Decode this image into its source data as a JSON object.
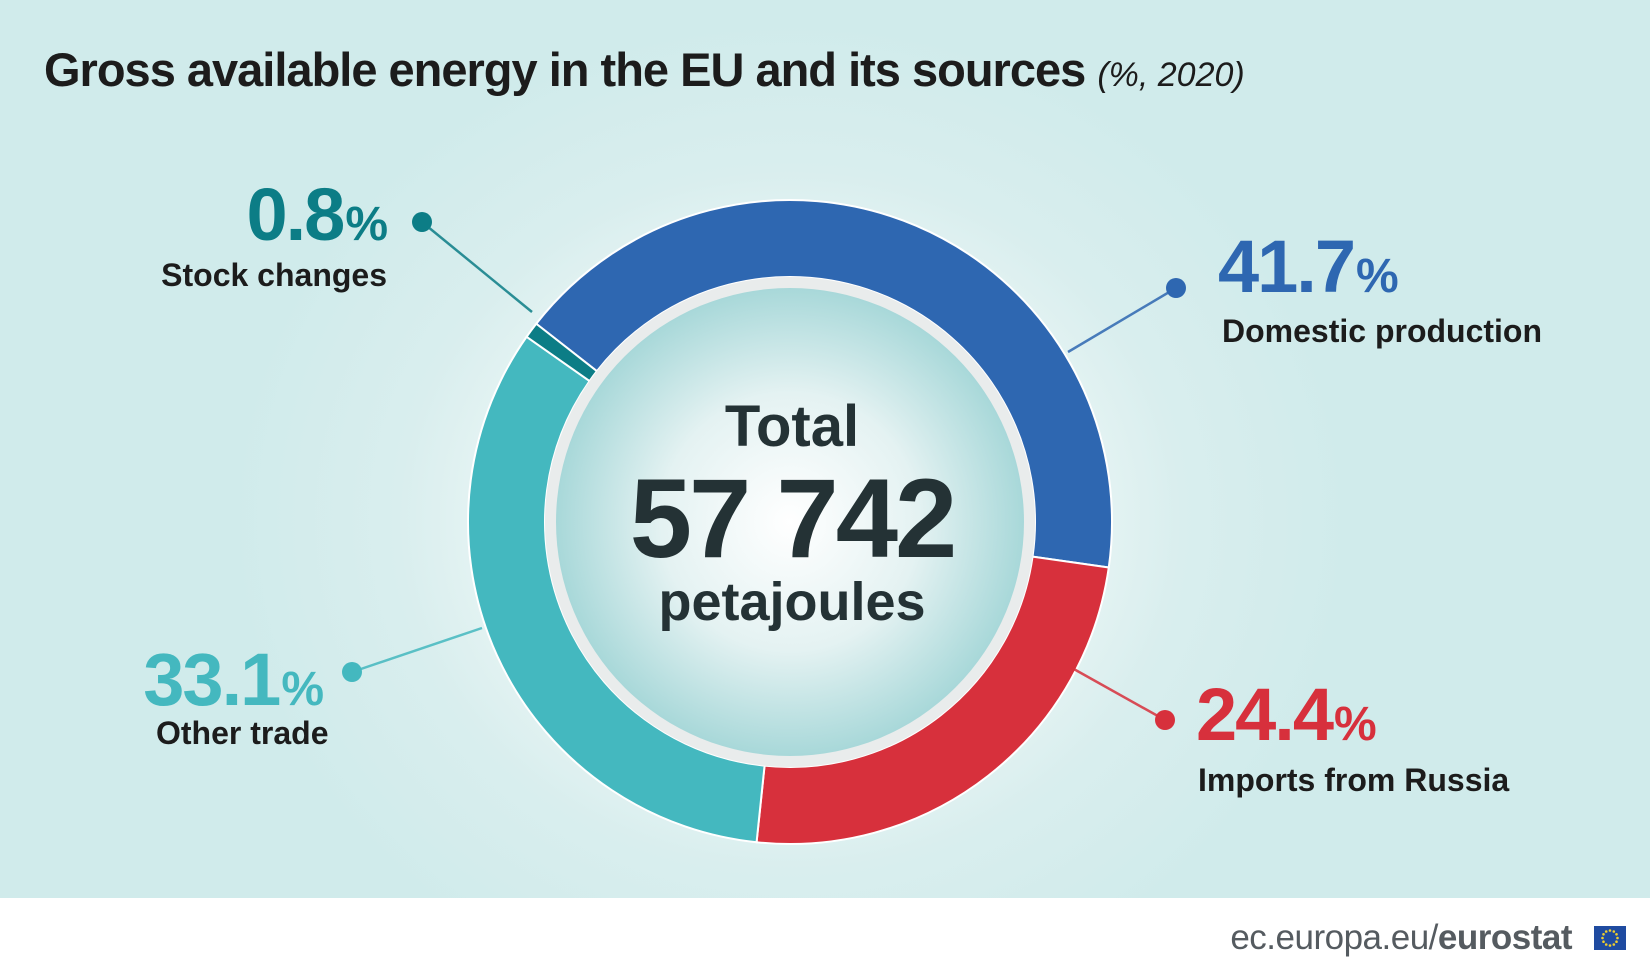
{
  "header": {
    "title": "Gross available energy in the EU and its sources",
    "subtitle": "(%, 2020)"
  },
  "center": {
    "line1": "Total",
    "value": "57 742",
    "unit": "petajoules"
  },
  "chart_data": {
    "type": "pie",
    "title": "Gross available energy in the EU and its sources",
    "subtitle": "(%, 2020)",
    "unit": "%",
    "slices": [
      {
        "name": "Domestic production",
        "value": 41.7,
        "label": "41.7%",
        "color": "#2e67b1"
      },
      {
        "name": "Imports from Russia",
        "value": 24.4,
        "label": "24.4%",
        "color": "#d7303c"
      },
      {
        "name": "Other trade",
        "value": 33.1,
        "label": "33.1%",
        "color": "#44b8bf"
      },
      {
        "name": "Stock changes",
        "value": 0.8,
        "label": "0.8%",
        "color": "#0c7d86"
      }
    ]
  },
  "colors": {
    "domestic": "#2e67b1",
    "russia": "#d7303c",
    "other_trade": "#44b8bf",
    "stock": "#0c7d86",
    "text_dark": "#1c1c1c",
    "center_text": "#243235"
  },
  "footer": {
    "site": "ec.europa.eu/",
    "brand": "eurostat"
  },
  "icons": {
    "flag": "eu-flag-icon"
  }
}
